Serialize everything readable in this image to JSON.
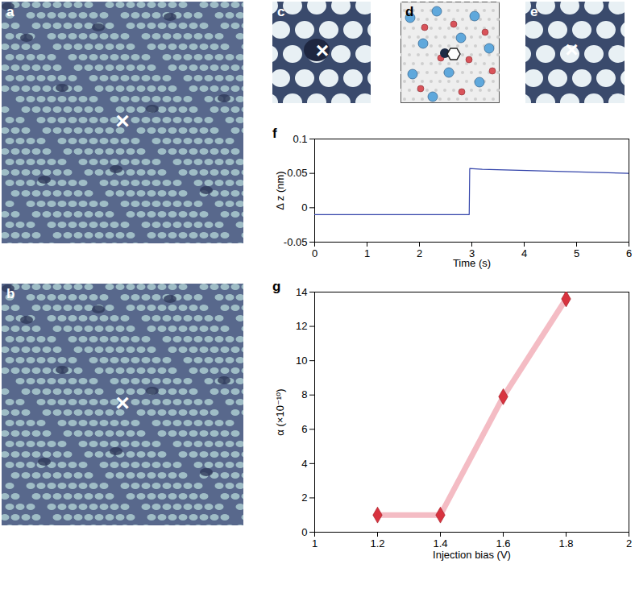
{
  "panels": [
    {
      "label": "a",
      "marker": "×"
    },
    {
      "label": "b",
      "marker": "×"
    },
    {
      "label": "c",
      "marker": "×"
    },
    {
      "label": "d"
    },
    {
      "label": "e",
      "marker": "×"
    }
  ],
  "chart_data": [
    {
      "type": "line",
      "title": "f",
      "x": [
        0,
        2.95,
        2.96,
        3.2,
        6
      ],
      "values": [
        -0.01,
        -0.01,
        0.057,
        0.056,
        0.05
      ],
      "color": "#3344aa",
      "xlabel": "Time (s)",
      "ylabel": "Δ z (nm)",
      "xlim": [
        0,
        6
      ],
      "xticks": [
        0,
        1,
        2,
        3,
        4,
        5,
        6
      ],
      "ylim": [
        -0.05,
        0.1
      ],
      "yticks": [
        -0.05,
        0,
        0.05,
        0.1
      ]
    },
    {
      "type": "line",
      "title": "g",
      "x": [
        1.2,
        1.4,
        1.6,
        1.8
      ],
      "series": [
        {
          "type": "line",
          "color": "#f4bcc4",
          "values": [
            1,
            1,
            7.9,
            13.6
          ]
        },
        {
          "type": "scatter",
          "marker": "diamond",
          "color": "#d8333f",
          "values": [
            1,
            1,
            7.9,
            13.6
          ]
        }
      ],
      "xlabel": "Injection bias (V)",
      "ylabel": "α (×10⁻¹⁰)",
      "xlim": [
        1,
        2
      ],
      "xticks": [
        1,
        1.2,
        1.4,
        1.6,
        1.8,
        2
      ],
      "ylim": [
        0,
        14
      ],
      "yticks": [
        0,
        2,
        4,
        6,
        8,
        10,
        12,
        14
      ]
    }
  ]
}
